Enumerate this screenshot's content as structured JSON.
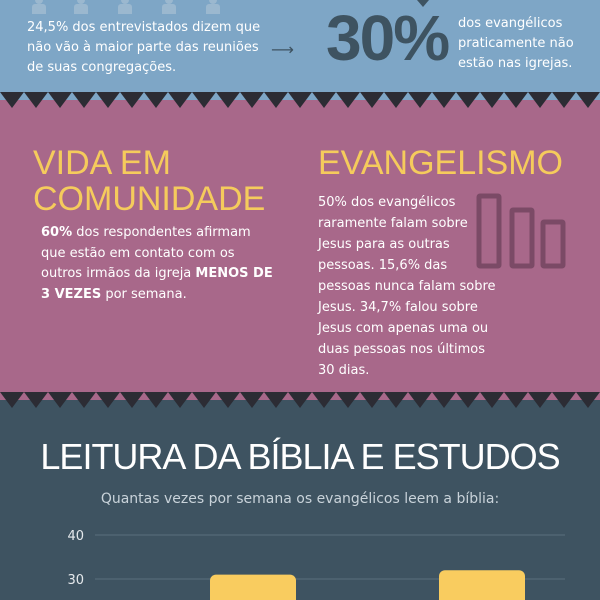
{
  "top": {
    "left_text": "24,5% dos entrevistados dizem que não vão à maior parte das reuniões de suas congregações.",
    "arrow": "⟶",
    "big_stat": "30%",
    "right_text": "dos evangélicos praticamente não estão nas igrejas."
  },
  "vida": {
    "heading": "VIDA EM COMUNIDADE",
    "stat": "60%",
    "text1": " dos respondentes afirmam que estão em contato com os outros irmãos da igreja ",
    "emph": "MENOS DE 3 VEZES",
    "text2": " por semana."
  },
  "evangelismo": {
    "heading": "EVANGELISMO",
    "text": "50% dos evangélicos raramente falam sobre Jesus para as outras pessoas. 15,6% das pessoas nunca falam sobre Jesus. 34,7% falou sobre Jesus com apenas uma ou duas pessoas nos últimos 30 dias."
  },
  "leitura": {
    "title": "LEITURA DA BÍBLIA E ESTUDOS",
    "subtitle": "Quantas vezes por semana os evangélicos leem a bíblia:"
  },
  "colors": {
    "top_band": "#7ea6c6",
    "mid_band": "#a8688a",
    "bottom_band": "#3e5361",
    "accent_yellow": "#f5cb5c",
    "bar_yellow": "#f9cc5f"
  },
  "chart_data": {
    "type": "bar",
    "title": "Quantas vezes por semana os evangélicos leem a bíblia:",
    "xlabel": "",
    "ylabel": "",
    "y_ticks": [
      30,
      40
    ],
    "grid": true,
    "categories": [
      "",
      ""
    ],
    "values": [
      31,
      32
    ],
    "note": "x-axis labels and lower part of chart are cut off in the image; only the bar tops are visible."
  }
}
